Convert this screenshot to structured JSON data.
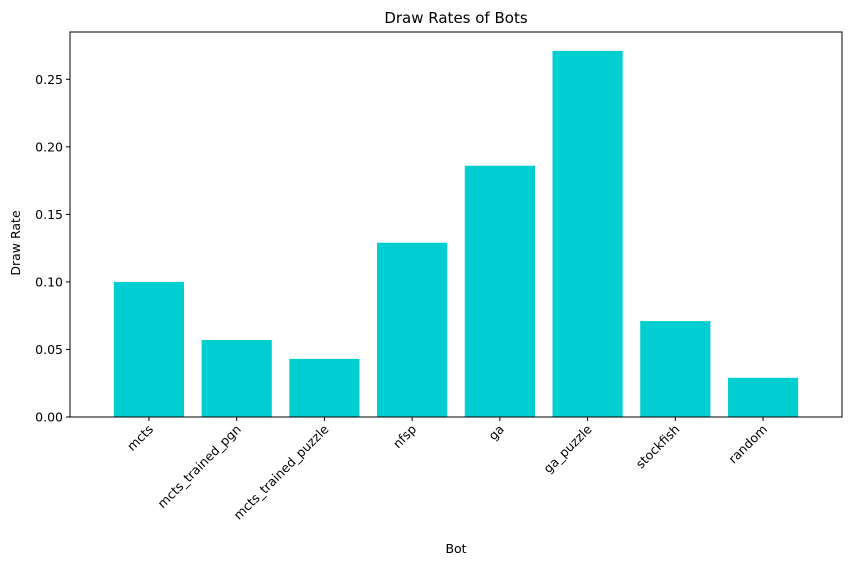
{
  "chart_data": {
    "type": "bar",
    "title": "Draw Rates of Bots",
    "xlabel": "Bot",
    "ylabel": "Draw Rate",
    "categories": [
      "mcts",
      "mcts_trained_pgn",
      "mcts_trained_puzzle",
      "nfsp",
      "ga",
      "ga_puzzle",
      "stockfish",
      "random"
    ],
    "values": [
      0.1,
      0.057,
      0.043,
      0.129,
      0.186,
      0.271,
      0.071,
      0.029
    ],
    "ylim": [
      0,
      0.285
    ],
    "yticks": [
      0.0,
      0.05,
      0.1,
      0.15,
      0.2,
      0.25
    ],
    "ytick_labels": [
      "0.00",
      "0.05",
      "0.10",
      "0.15",
      "0.20",
      "0.25"
    ],
    "grid": false,
    "legend": "none",
    "bar_color": "#00ced1",
    "xtick_rotation": 45
  }
}
